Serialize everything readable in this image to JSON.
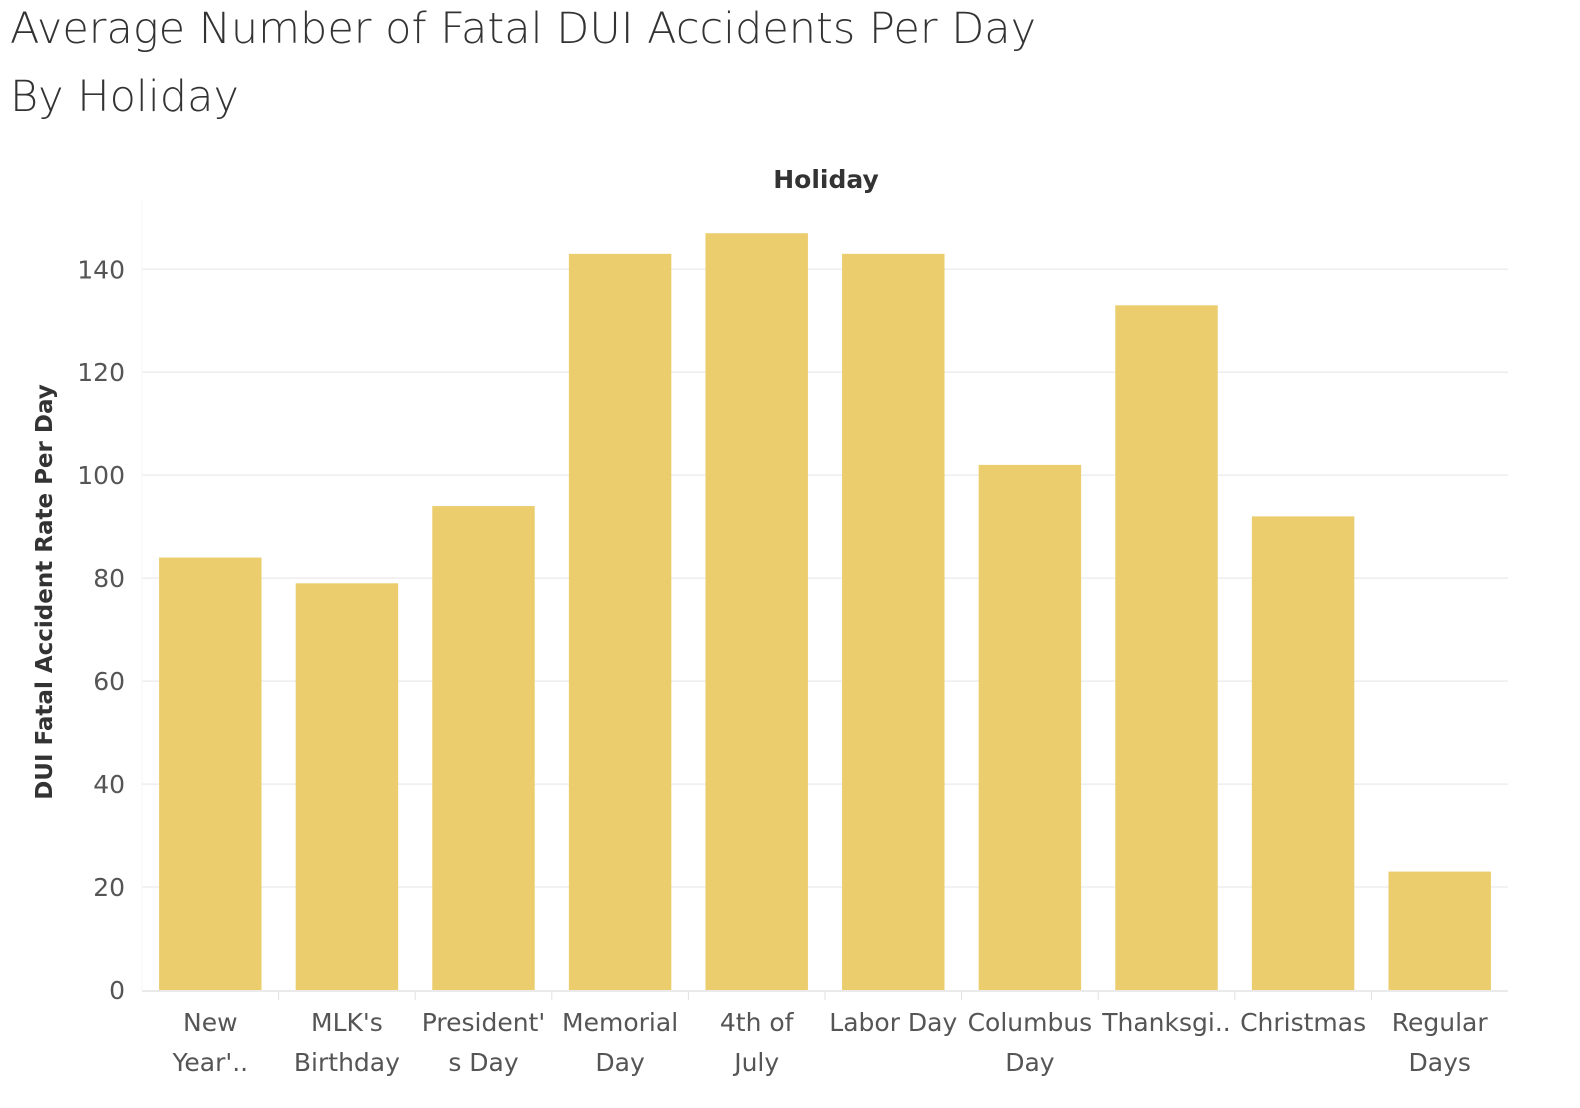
{
  "title_lines": [
    "Average Number of Fatal DUI Accidents Per Day",
    "By Holiday"
  ],
  "colors": {
    "bar": "#EBCD6E",
    "grid": "#EDEDED",
    "axis_text": "#555555",
    "label_text": "#333333"
  },
  "chart_data": {
    "type": "bar",
    "title": "Average Number of Fatal DUI Accidents Per Day By Holiday",
    "header": "Holiday",
    "xlabel": "",
    "ylabel": "DUI Fatal Accident Rate Per Day",
    "categories": [
      [
        "New",
        "Year'.."
      ],
      [
        "MLK's",
        "Birthday"
      ],
      [
        "President'",
        "s Day"
      ],
      [
        "Memorial",
        "Day"
      ],
      [
        "4th of",
        "July"
      ],
      [
        "Labor Day"
      ],
      [
        "Columbus",
        "Day"
      ],
      [
        "Thanksgi.."
      ],
      [
        "Christmas"
      ],
      [
        "Regular",
        "Days"
      ]
    ],
    "values": [
      84,
      79,
      94,
      143,
      147,
      143,
      102,
      133,
      92,
      23
    ],
    "ylim": [
      0,
      150
    ],
    "yticks": [
      0,
      20,
      40,
      60,
      80,
      100,
      120,
      140
    ],
    "grid": true
  }
}
